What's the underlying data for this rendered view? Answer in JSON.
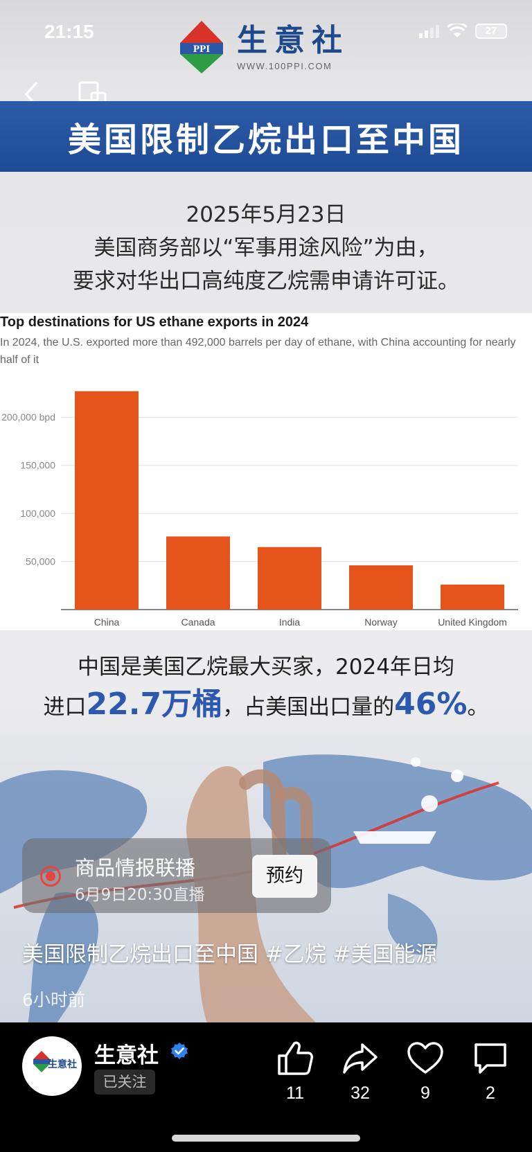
{
  "status_bar": {
    "time": "21:15",
    "battery": "27"
  },
  "logo": {
    "badge": "PPI",
    "name": "生意社",
    "url": "WWW.100PPI.COM"
  },
  "banner": {
    "title": "美国限制乙烷出口至中国"
  },
  "intro": {
    "date": "2025年5月23日",
    "line1": "美国商务部以“军事用途风险”为由，",
    "line2": "要求对华出口高纯度乙烷需申请许可证。"
  },
  "chart_data": {
    "type": "bar",
    "title": "Top destinations for US ethane exports in 2024",
    "subtitle": "In 2024, the U.S. exported more than 492,000 barrels per day of ethane, with China accounting for nearly half of it",
    "categories": [
      "China",
      "Canada",
      "India",
      "Norway",
      "United Kingdom"
    ],
    "values": [
      227000,
      76000,
      65000,
      46000,
      26000
    ],
    "yticks": [
      50000,
      100000,
      150000,
      200000
    ],
    "ytick_labels": [
      "50,000",
      "100,000",
      "150,000",
      "200,000 bpd"
    ],
    "ylim": [
      0,
      240000
    ],
    "grid": true,
    "bar_color": "#e3531a"
  },
  "summary": {
    "line1": "中国是美国乙烷最大买家，2024年日均",
    "line2_prefix": "进口",
    "line2_highlight1": "22.7万桶",
    "line2_middle": "，占美国出口量的",
    "line2_highlight2": "46%",
    "line2_suffix": "。"
  },
  "live": {
    "title": "商品情报联播",
    "time": "6月9日20:30直播",
    "button": "预约"
  },
  "caption": "美国限制乙烷出口至中国 #乙烷 #美国能源",
  "post_time": "6小时前",
  "author": {
    "name": "生意社",
    "follow_status": "已关注",
    "avatar_text": "生意社"
  },
  "actions": {
    "likes": "11",
    "shares": "32",
    "favorites": "9",
    "comments": "2"
  },
  "colors": {
    "brand_blue": "#1e4a8c",
    "banner_blue": "#2d5ba8",
    "accent_orange": "#e3531a",
    "live_red": "#e8453c"
  }
}
